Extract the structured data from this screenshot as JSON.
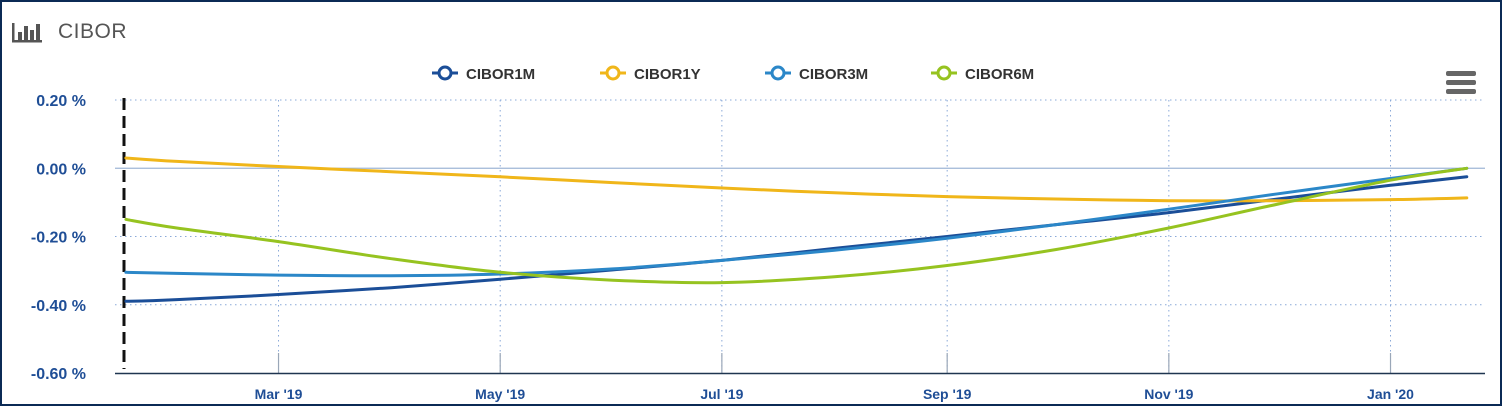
{
  "title": "CIBOR",
  "icons": {
    "title_icon": "bar-chart-icon",
    "menu_icon": "hamburger-menu-icon"
  },
  "chart_data": {
    "type": "line",
    "title": "CIBOR",
    "xlabel": "",
    "ylabel": "",
    "y_unit": " %",
    "ylim": [
      -0.6,
      0.2
    ],
    "y_ticks": [
      0.2,
      0.0,
      -0.2,
      -0.4,
      -0.6
    ],
    "y_tick_labels": [
      "0.20 %",
      "0.00 %",
      "-0.20 %",
      "-0.40 %",
      "-0.60 %"
    ],
    "xlim": [
      "2019-01-15",
      "2020-01-27"
    ],
    "x_ticks": [
      "2019-03-01",
      "2019-05-01",
      "2019-07-01",
      "2019-09-01",
      "2019-11-01",
      "2020-01-01"
    ],
    "x_tick_labels": [
      "Mar '19",
      "May '19",
      "Jul '19",
      "Sep '19",
      "Nov '19",
      "Jan '20"
    ],
    "grid": true,
    "legend_position": "top-center",
    "series": [
      {
        "name": "CIBOR1M",
        "color": "#1b4e98",
        "x": [
          "2019-01-18",
          "2019-02-01",
          "2019-03-01",
          "2019-04-01",
          "2019-05-01",
          "2019-06-01",
          "2019-07-01",
          "2019-08-01",
          "2019-09-01",
          "2019-10-01",
          "2019-11-01",
          "2019-12-01",
          "2020-01-01",
          "2020-01-22"
        ],
        "y": [
          -0.39,
          -0.385,
          -0.37,
          -0.35,
          -0.325,
          -0.298,
          -0.27,
          -0.235,
          -0.2,
          -0.165,
          -0.13,
          -0.09,
          -0.05,
          -0.025
        ]
      },
      {
        "name": "CIBOR1Y",
        "color": "#f0b61a",
        "x": [
          "2019-01-18",
          "2019-02-01",
          "2019-03-01",
          "2019-04-01",
          "2019-05-01",
          "2019-06-01",
          "2019-07-01",
          "2019-08-01",
          "2019-09-01",
          "2019-10-01",
          "2019-11-01",
          "2019-12-01",
          "2020-01-01",
          "2020-01-22"
        ],
        "y": [
          0.03,
          0.02,
          0.005,
          -0.01,
          -0.025,
          -0.042,
          -0.058,
          -0.072,
          -0.083,
          -0.09,
          -0.095,
          -0.095,
          -0.092,
          -0.087
        ]
      },
      {
        "name": "CIBOR3M",
        "color": "#2b87c8",
        "x": [
          "2019-01-18",
          "2019-02-01",
          "2019-03-01",
          "2019-04-01",
          "2019-05-01",
          "2019-06-01",
          "2019-07-01",
          "2019-08-01",
          "2019-09-01",
          "2019-10-01",
          "2019-11-01",
          "2019-12-01",
          "2020-01-01",
          "2020-01-22"
        ],
        "y": [
          -0.305,
          -0.308,
          -0.313,
          -0.315,
          -0.31,
          -0.295,
          -0.27,
          -0.24,
          -0.205,
          -0.165,
          -0.12,
          -0.075,
          -0.03,
          0.0
        ]
      },
      {
        "name": "CIBOR6M",
        "color": "#96c320",
        "x": [
          "2019-01-18",
          "2019-02-01",
          "2019-03-01",
          "2019-04-01",
          "2019-05-01",
          "2019-06-01",
          "2019-07-01",
          "2019-08-01",
          "2019-09-01",
          "2019-10-01",
          "2019-11-01",
          "2019-12-01",
          "2020-01-01",
          "2020-01-22"
        ],
        "y": [
          -0.15,
          -0.175,
          -0.215,
          -0.265,
          -0.305,
          -0.328,
          -0.335,
          -0.318,
          -0.285,
          -0.238,
          -0.175,
          -0.105,
          -0.035,
          0.0
        ]
      }
    ]
  }
}
